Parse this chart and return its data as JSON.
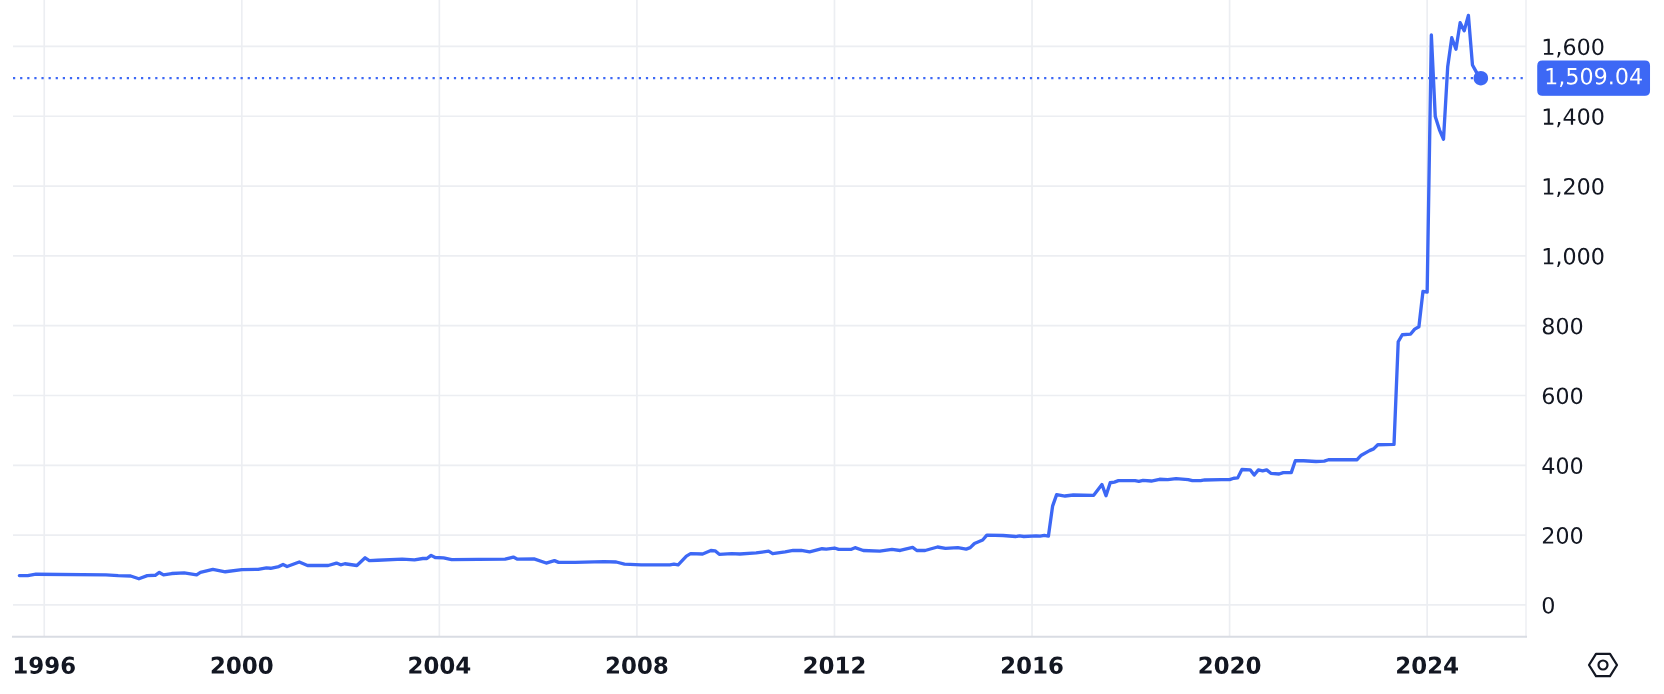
{
  "chart_data": {
    "type": "line",
    "x": [
      "1995-07",
      "1995-09",
      "1995-11",
      "1997-04",
      "1997-07",
      "1997-10",
      "1997-12",
      "1998-02",
      "1998-04",
      "1998-05",
      "1998-06",
      "1998-08",
      "1998-11",
      "1999-02",
      "1999-03",
      "1999-06",
      "1999-09",
      "2000-01",
      "2000-05",
      "2000-07",
      "2000-08",
      "2000-10",
      "2000-11",
      "2000-12",
      "2001-03",
      "2001-05",
      "2001-10",
      "2001-12",
      "2002-01",
      "2002-02",
      "2002-05",
      "2002-07",
      "2002-08",
      "2002-10",
      "2003-04",
      "2003-07",
      "2003-09",
      "2003-10",
      "2003-11",
      "2003-12",
      "2004-02",
      "2004-04",
      "2005-05",
      "2005-07",
      "2005-08",
      "2005-12",
      "2006-03",
      "2006-05",
      "2006-06",
      "2006-10",
      "2007-05",
      "2007-08",
      "2007-10",
      "2008-02",
      "2008-09",
      "2008-10",
      "2008-11",
      "2009-01",
      "2009-02",
      "2009-05",
      "2009-07",
      "2009-08",
      "2009-09",
      "2009-12",
      "2010-02",
      "2010-06",
      "2010-09",
      "2010-10",
      "2011-01",
      "2011-03",
      "2011-05",
      "2011-07",
      "2011-10",
      "2011-11",
      "2012-01",
      "2012-02",
      "2012-05",
      "2012-06",
      "2012-08",
      "2012-12",
      "2013-03",
      "2013-05",
      "2013-08",
      "2013-09",
      "2013-11",
      "2014-02",
      "2014-04",
      "2014-07",
      "2014-09",
      "2014-10",
      "2014-11",
      "2015-01",
      "2015-02",
      "2015-06",
      "2015-09",
      "2015-10",
      "2015-11",
      "2016-02",
      "2016-03",
      "2016-04",
      "2016-05",
      "2016-06",
      "2016-07",
      "2016-09",
      "2016-11",
      "2017-04",
      "2017-06",
      "2017-07",
      "2017-08",
      "2017-09",
      "2017-10",
      "2018-02",
      "2018-03",
      "2018-04",
      "2018-06",
      "2018-08",
      "2018-10",
      "2018-12",
      "2019-03",
      "2019-04",
      "2019-06",
      "2019-07",
      "2019-11",
      "2020-01",
      "2020-02",
      "2020-03",
      "2020-04",
      "2020-06",
      "2020-07",
      "2020-08",
      "2020-09",
      "2020-10",
      "2020-11",
      "2021-01",
      "2021-02",
      "2021-04",
      "2021-05",
      "2021-07",
      "2021-10",
      "2021-12",
      "2022-01",
      "2022-08",
      "2022-09",
      "2022-11",
      "2022-12",
      "2023-01",
      "2023-05",
      "2023-06",
      "2023-07",
      "2023-09",
      "2023-10",
      "2023-11",
      "2023-12",
      "2024-01",
      "2024-02",
      "2024-03",
      "2024-04",
      "2024-05",
      "2024-06",
      "2024-07",
      "2024-08",
      "2024-09",
      "2024-10",
      "2024-11",
      "2024-12",
      "2025-01",
      "2025-02"
    ],
    "series": [
      {
        "color": "#3d68f5",
        "values": [
          84,
          84,
          88,
          86,
          84,
          83,
          75,
          84,
          85,
          93,
          86,
          90,
          92,
          86,
          93,
          102,
          95,
          101,
          102,
          106,
          105,
          110,
          116,
          110,
          123,
          113,
          113,
          120,
          115,
          118,
          113,
          135,
          127,
          128,
          131,
          129,
          133,
          133,
          142,
          136,
          135,
          130,
          131,
          137,
          131,
          132,
          120,
          127,
          122,
          122,
          124,
          123,
          117,
          115,
          115,
          117,
          115,
          140,
          147,
          146,
          156,
          155,
          145,
          147,
          146,
          149,
          154,
          147,
          152,
          156,
          156,
          152,
          161,
          160,
          163,
          159,
          159,
          164,
          156,
          154,
          159,
          156,
          165,
          156,
          156,
          166,
          162,
          164,
          160,
          164,
          176,
          186,
          200,
          199,
          196,
          198,
          196,
          198,
          197,
          199,
          197,
          283,
          316,
          312,
          315,
          314,
          345,
          313,
          350,
          352,
          356,
          356,
          354,
          357,
          355,
          360,
          359,
          362,
          359,
          356,
          356,
          358,
          359,
          359,
          363,
          364,
          388,
          387,
          372,
          387,
          384,
          387,
          377,
          375,
          379,
          379,
          413,
          413,
          411,
          412,
          416,
          416,
          429,
          442,
          447,
          459,
          460,
          754,
          774,
          776,
          790,
          797,
          898,
          896,
          1633,
          1399,
          1361,
          1334,
          1542,
          1625,
          1592,
          1668,
          1645,
          1689,
          1547,
          1525,
          1509.04
        ]
      },
      {
        "type": "scatter",
        "color": "#3d68f5",
        "marker": "circle",
        "x": [
          "2025-02"
        ],
        "values": [
          1509.04
        ]
      }
    ],
    "xlim": [
      "1995-05-15",
      "2026-01-01"
    ],
    "xticks": [
      "1996",
      "2000",
      "2004",
      "2008",
      "2012",
      "2016",
      "2020",
      "2024"
    ],
    "ylim": [
      -91,
      1733
    ],
    "yticks": [
      0,
      200,
      400,
      600,
      800,
      {
        "value": 1000,
        "label": "1,000"
      },
      {
        "value": 1200,
        "label": "1,200"
      },
      {
        "value": 1400,
        "label": "1,400"
      },
      {
        "value": 1600,
        "label": "1,600"
      }
    ],
    "grid": true,
    "line_style": "solid",
    "marker": "none",
    "ref_lines": [
      {
        "axis": "y",
        "value": 1509.04,
        "label": "1,509.04",
        "color": "#3d68f5",
        "line_style": "dotted"
      }
    ]
  }
}
